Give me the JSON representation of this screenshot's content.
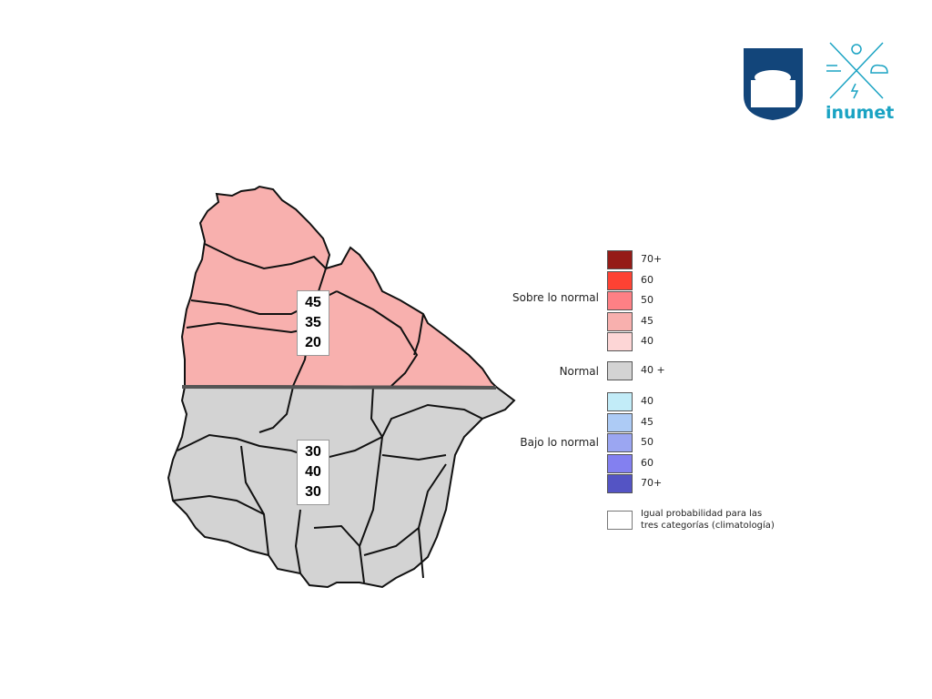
{
  "logos": {
    "university": "Universidad de la República seal",
    "inumet": "inumet"
  },
  "regions": [
    {
      "name": "north",
      "probabilities": [
        "45",
        "35",
        "20"
      ],
      "color": "#f8b0ae"
    },
    {
      "name": "south",
      "probabilities": [
        "30",
        "40",
        "30"
      ],
      "color": "#d3d3d3"
    }
  ],
  "legend": {
    "above": {
      "label": "Sobre lo normal",
      "items": [
        {
          "value": "70+",
          "color": "#951b17"
        },
        {
          "value": "60",
          "color": "#fe4233"
        },
        {
          "value": "50",
          "color": "#fe8085"
        },
        {
          "value": "45",
          "color": "#f8b0ae"
        },
        {
          "value": "40",
          "color": "#fdd6d6"
        }
      ]
    },
    "normal": {
      "label": "Normal",
      "items": [
        {
          "value": "40 +",
          "color": "#d3d3d3"
        }
      ]
    },
    "below": {
      "label": "Bajo lo normal",
      "items": [
        {
          "value": "40",
          "color": "#c2ecf8"
        },
        {
          "value": "45",
          "color": "#adcbf5"
        },
        {
          "value": "50",
          "color": "#9ba6f2"
        },
        {
          "value": "60",
          "color": "#8380f0"
        },
        {
          "value": "70+",
          "color": "#5454c4"
        }
      ]
    },
    "climatology": {
      "label_line1": "Igual probabilidad para las",
      "label_line2": "tres categorías (climatología)",
      "color": "#ffffff"
    }
  }
}
